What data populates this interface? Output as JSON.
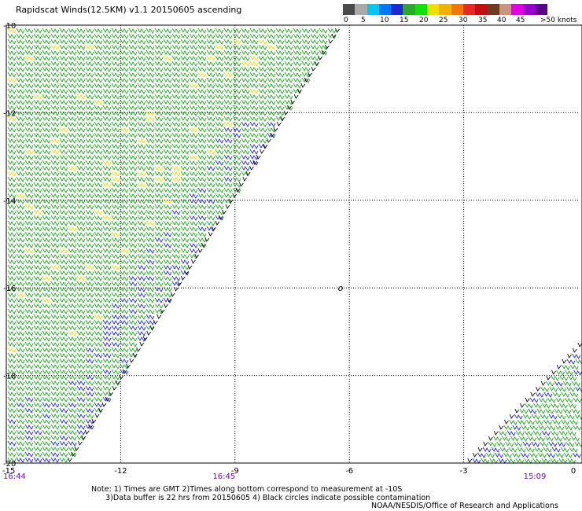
{
  "title": "Rapidscat Winds(12.5KM) v1.1 20150605 ascending",
  "legend": {
    "colors": [
      "#4a4a4a",
      "#a9a9a9",
      "#00c8f0",
      "#0078f0",
      "#1e28d2",
      "#2aa82a",
      "#10e010",
      "#f0e000",
      "#f0b400",
      "#f07800",
      "#e62828",
      "#c01010",
      "#6e3c1e",
      "#c89680",
      "#e100e1",
      "#9600c8",
      "#5a008c"
    ],
    "labels": [
      "0",
      "5",
      "10",
      "15",
      "20",
      "25",
      "30",
      "35",
      "40",
      "45",
      ">50 knots"
    ]
  },
  "axes": {
    "x_ticks": [
      "-12",
      "-9",
      "-6",
      "-3",
      "0"
    ],
    "x_first": "-15",
    "y_ticks": [
      "-10",
      "-12",
      "-14",
      "-16",
      "-18",
      "-20"
    ],
    "x_range": [
      -15,
      0
    ],
    "y_range": [
      -20,
      -10
    ]
  },
  "times": [
    "16:44",
    "16:45",
    "15:09"
  ],
  "circle_marker": {
    "label": "o",
    "lon": -6.3,
    "lat": -16.0
  },
  "notes": {
    "line1": "Note: 1) Times are GMT 2)Times along bottom correspond to measurement at -10S",
    "line2": "3)Data buffer is 22 hrs from 20150605 4) Black circles indicate possible contamination"
  },
  "credit": "NOAA/NESDIS/Office of Research and Applications"
}
